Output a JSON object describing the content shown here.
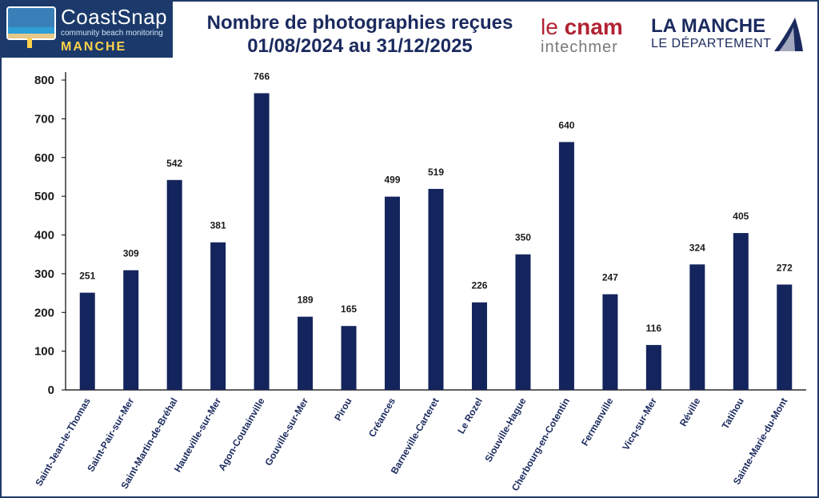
{
  "header": {
    "title_line1": "Nombre de photographies reçues",
    "title_line2": "01/08/2024 au 31/12/2025"
  },
  "logos": {
    "coastsnap_name": "CoastSnap",
    "coastsnap_tagline": "community beach monitoring",
    "coastsnap_region": "MANCHE",
    "cnam_prefix": "le",
    "cnam_name": "cnam",
    "cnam_sub": "intechmer",
    "manche_name": "LA MANCHE",
    "manche_sub": "LE DÉPARTEMENT"
  },
  "colors": {
    "bar": "#14245c",
    "accent": "#1b3a6b"
  },
  "chart_data": {
    "type": "bar",
    "categories": [
      "Saint-Jean-le-Thomas",
      "Saint-Pair-sur-Mer",
      "Saint-Martin-de-Bréhal",
      "Hauteville-sur-Mer",
      "Agon-Coutainville",
      "Gouville-sur-Mer",
      "Pirou",
      "Créances",
      "Barneville-Carteret",
      "Le Rozel",
      "Siouville-Hague",
      "Cherbourg-en-Cotentin",
      "Fermanville",
      "Vicq-sur-Mer",
      "Réville",
      "Tatihou",
      "Sainte-Marie-du-Mont"
    ],
    "values": [
      251,
      309,
      542,
      381,
      766,
      189,
      165,
      499,
      519,
      226,
      350,
      640,
      247,
      116,
      324,
      405,
      272
    ],
    "title": "Nombre de photographies reçues 01/08/2024 au 31/12/2025",
    "xlabel": "",
    "ylabel": "",
    "ylim": [
      0,
      800
    ],
    "yticks": [
      0,
      100,
      200,
      300,
      400,
      500,
      600,
      700,
      800
    ],
    "grid": false,
    "legend": "none",
    "data_labels": true
  }
}
